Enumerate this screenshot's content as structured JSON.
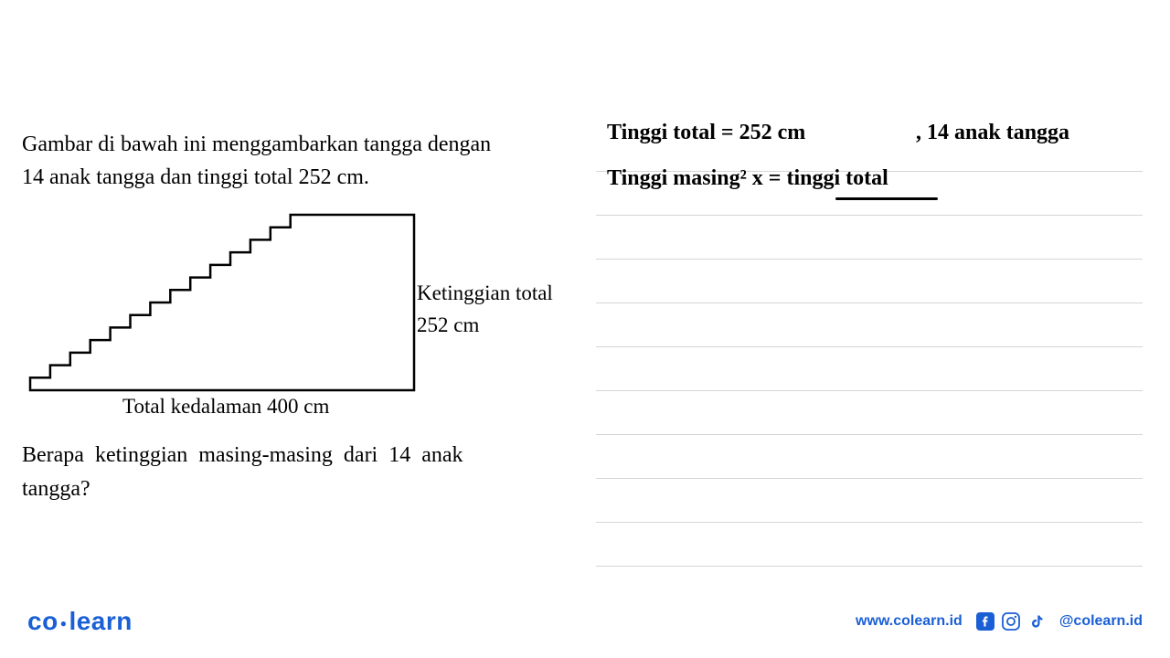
{
  "problem": {
    "intro_line1": "Gambar di bawah ini menggambarkan tangga dengan",
    "intro_line2": "14 anak tangga dan tinggi total 252 cm.",
    "label_height_line1": "Ketinggian total",
    "label_height_line2": "252 cm",
    "label_depth": "Total kedalaman 400 cm",
    "question_line1": "Berapa ketinggian masing-masing dari 14 anak",
    "question_line2": "tangga?"
  },
  "diagram": {
    "steps": 14,
    "total_width": 420,
    "total_height": 192,
    "stroke_color": "#000000",
    "stroke_width": 2.5,
    "step_width_ratio": 0.73
  },
  "handwriting": {
    "line1_left": "Tinggi total  =  252 cm",
    "line1_right": ", 14 anak tangga",
    "line2": "Tinggi masing² x  =  tinggi total"
  },
  "notebook": {
    "line_count": 10,
    "line_color": "#d5d5d5"
  },
  "footer": {
    "logo_co": "co",
    "logo_learn": "learn",
    "website": "www.colearn.id",
    "handle": "@colearn.id",
    "brand_color": "#1a5fd4"
  }
}
